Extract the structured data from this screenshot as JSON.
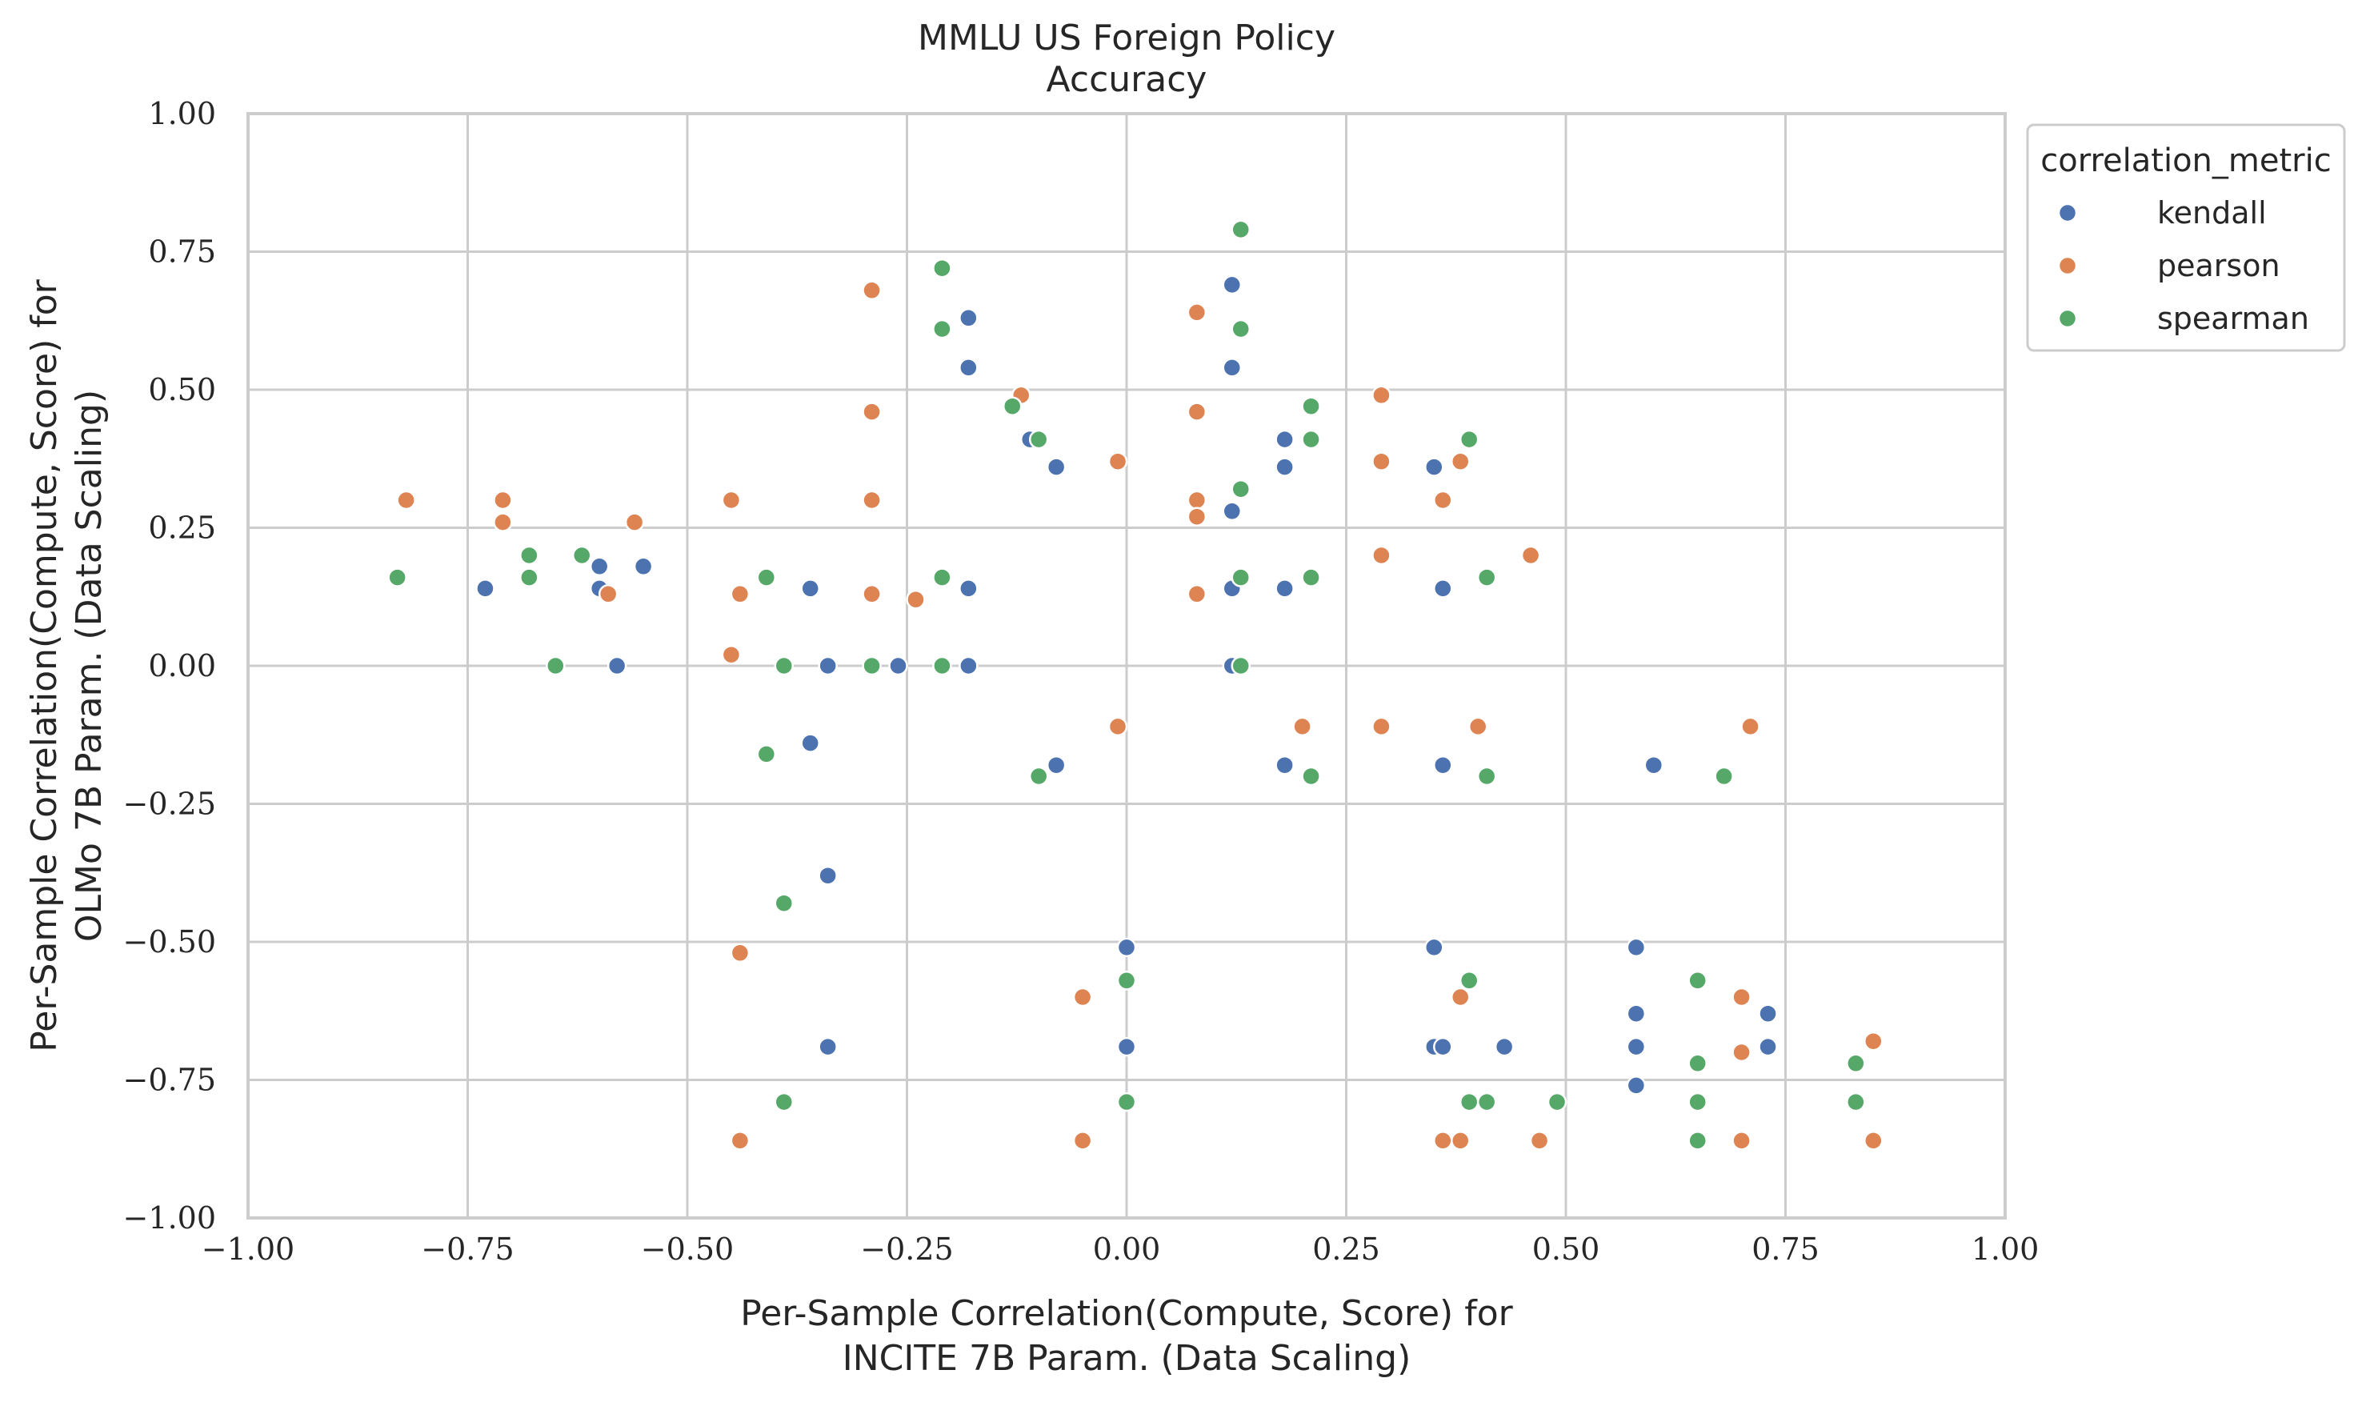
{
  "chart_data": {
    "type": "scatter",
    "title": "MMLU US Foreign Policy",
    "subtitle": "Accuracy",
    "xlabel_line1": "Per-Sample Correlation(Compute, Score) for",
    "xlabel_line2": "INCITE 7B Param. (Data Scaling)",
    "ylabel_line1": "Per-Sample Correlation(Compute, Score) for",
    "ylabel_line2": "OLMo 7B Param. (Data Scaling)",
    "xlim": [
      -1.0,
      1.0
    ],
    "ylim": [
      -1.0,
      1.0
    ],
    "xticks": [
      -1.0,
      -0.75,
      -0.5,
      -0.25,
      0.0,
      0.25,
      0.5,
      0.75,
      1.0
    ],
    "yticks": [
      -1.0,
      -0.75,
      -0.5,
      -0.25,
      0.0,
      0.25,
      0.5,
      0.75,
      1.0
    ],
    "xtick_labels": [
      "−1.00",
      "−0.75",
      "−0.50",
      "−0.25",
      "0.00",
      "0.25",
      "0.50",
      "0.75",
      "1.00"
    ],
    "ytick_labels": [
      "−1.00",
      "−0.75",
      "−0.50",
      "−0.25",
      "0.00",
      "0.25",
      "0.50",
      "0.75",
      "1.00"
    ],
    "grid": true,
    "legend": {
      "title": "correlation_metric",
      "placement": "outside-upper-right"
    },
    "series": [
      {
        "name": "kendall",
        "color": "#4c72b0",
        "points": [
          [
            -0.73,
            0.14
          ],
          [
            -0.6,
            0.18
          ],
          [
            -0.6,
            0.14
          ],
          [
            -0.58,
            0.0
          ],
          [
            -0.55,
            0.18
          ],
          [
            -0.36,
            0.14
          ],
          [
            -0.34,
            0.0
          ],
          [
            -0.36,
            -0.14
          ],
          [
            -0.34,
            -0.38
          ],
          [
            -0.34,
            -0.69
          ],
          [
            -0.26,
            0.0
          ],
          [
            -0.18,
            0.63
          ],
          [
            -0.18,
            0.54
          ],
          [
            -0.18,
            0.14
          ],
          [
            -0.18,
            0.0
          ],
          [
            -0.11,
            0.41
          ],
          [
            -0.08,
            0.36
          ],
          [
            -0.08,
            -0.18
          ],
          [
            0.0,
            -0.51
          ],
          [
            0.0,
            -0.69
          ],
          [
            0.12,
            0.69
          ],
          [
            0.12,
            0.54
          ],
          [
            0.12,
            0.28
          ],
          [
            0.12,
            0.14
          ],
          [
            0.12,
            0.0
          ],
          [
            0.18,
            0.41
          ],
          [
            0.18,
            0.36
          ],
          [
            0.18,
            0.14
          ],
          [
            0.18,
            -0.18
          ],
          [
            0.35,
            0.36
          ],
          [
            0.36,
            0.14
          ],
          [
            0.36,
            -0.18
          ],
          [
            0.35,
            -0.51
          ],
          [
            0.35,
            -0.69
          ],
          [
            0.36,
            -0.69
          ],
          [
            0.43,
            -0.69
          ],
          [
            0.6,
            -0.18
          ],
          [
            0.58,
            -0.51
          ],
          [
            0.58,
            -0.63
          ],
          [
            0.58,
            -0.69
          ],
          [
            0.58,
            -0.76
          ],
          [
            0.73,
            -0.63
          ],
          [
            0.73,
            -0.69
          ]
        ]
      },
      {
        "name": "pearson",
        "color": "#dd8452",
        "points": [
          [
            -0.82,
            0.3
          ],
          [
            -0.71,
            0.3
          ],
          [
            -0.71,
            0.26
          ],
          [
            -0.59,
            0.13
          ],
          [
            -0.56,
            0.26
          ],
          [
            -0.45,
            0.3
          ],
          [
            -0.45,
            0.02
          ],
          [
            -0.44,
            0.13
          ],
          [
            -0.44,
            -0.52
          ],
          [
            -0.44,
            -0.86
          ],
          [
            -0.29,
            0.68
          ],
          [
            -0.29,
            0.46
          ],
          [
            -0.29,
            0.3
          ],
          [
            -0.29,
            0.13
          ],
          [
            -0.24,
            0.12
          ],
          [
            -0.12,
            0.49
          ],
          [
            -0.05,
            -0.6
          ],
          [
            -0.05,
            -0.86
          ],
          [
            -0.01,
            0.37
          ],
          [
            -0.01,
            -0.11
          ],
          [
            0.08,
            0.64
          ],
          [
            0.08,
            0.46
          ],
          [
            0.08,
            0.3
          ],
          [
            0.08,
            0.27
          ],
          [
            0.08,
            0.13
          ],
          [
            0.2,
            -0.11
          ],
          [
            0.29,
            0.49
          ],
          [
            0.29,
            0.37
          ],
          [
            0.29,
            0.2
          ],
          [
            0.29,
            -0.11
          ],
          [
            0.36,
            0.3
          ],
          [
            0.38,
            0.37
          ],
          [
            0.38,
            -0.6
          ],
          [
            0.36,
            -0.86
          ],
          [
            0.38,
            -0.86
          ],
          [
            0.4,
            -0.11
          ],
          [
            0.46,
            0.2
          ],
          [
            0.47,
            -0.86
          ],
          [
            0.7,
            -0.6
          ],
          [
            0.7,
            -0.7
          ],
          [
            0.7,
            -0.86
          ],
          [
            0.71,
            -0.11
          ],
          [
            0.85,
            -0.68
          ],
          [
            0.85,
            -0.86
          ]
        ]
      },
      {
        "name": "spearman",
        "color": "#55a868",
        "points": [
          [
            -0.83,
            0.16
          ],
          [
            -0.68,
            0.2
          ],
          [
            -0.68,
            0.16
          ],
          [
            -0.65,
            0.0
          ],
          [
            -0.62,
            0.2
          ],
          [
            -0.41,
            0.16
          ],
          [
            -0.41,
            -0.16
          ],
          [
            -0.39,
            0.0
          ],
          [
            -0.39,
            -0.43
          ],
          [
            -0.39,
            -0.79
          ],
          [
            -0.29,
            0.0
          ],
          [
            -0.21,
            0.72
          ],
          [
            -0.21,
            0.61
          ],
          [
            -0.21,
            0.16
          ],
          [
            -0.21,
            0.0
          ],
          [
            -0.13,
            0.47
          ],
          [
            -0.1,
            0.41
          ],
          [
            -0.1,
            -0.2
          ],
          [
            0.0,
            -0.57
          ],
          [
            0.0,
            -0.79
          ],
          [
            0.13,
            0.79
          ],
          [
            0.13,
            0.61
          ],
          [
            0.13,
            0.32
          ],
          [
            0.13,
            0.16
          ],
          [
            0.13,
            0.0
          ],
          [
            0.21,
            0.47
          ],
          [
            0.21,
            0.41
          ],
          [
            0.21,
            0.16
          ],
          [
            0.21,
            -0.2
          ],
          [
            0.39,
            0.41
          ],
          [
            0.39,
            -0.57
          ],
          [
            0.39,
            -0.79
          ],
          [
            0.41,
            -0.79
          ],
          [
            0.41,
            0.16
          ],
          [
            0.41,
            -0.2
          ],
          [
            0.49,
            -0.79
          ],
          [
            0.65,
            -0.57
          ],
          [
            0.65,
            -0.72
          ],
          [
            0.65,
            -0.79
          ],
          [
            0.65,
            -0.86
          ],
          [
            0.68,
            -0.2
          ],
          [
            0.83,
            -0.72
          ],
          [
            0.83,
            -0.79
          ]
        ]
      }
    ]
  }
}
